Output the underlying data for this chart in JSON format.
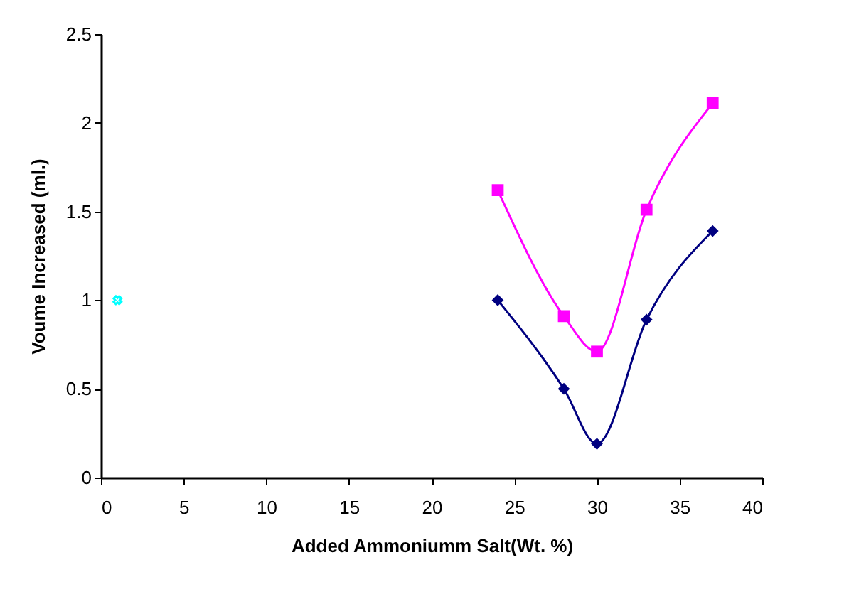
{
  "chart_data": {
    "type": "line",
    "xlabel": "Added Ammoniumm Salt(Wt. %)",
    "ylabel": "Voume Increased (ml.)",
    "xlim": [
      0,
      40
    ],
    "xticks": [
      0,
      5,
      10,
      15,
      20,
      25,
      30,
      35,
      40
    ],
    "ylim": [
      0,
      2.5
    ],
    "yticks": [
      0,
      0.5,
      1,
      1.5,
      2,
      2.5
    ],
    "grid": false,
    "series": [
      {
        "color": "#000080",
        "marker": "diamond",
        "x": [
          24,
          28,
          30,
          33,
          37
        ],
        "values": [
          1.0,
          0.5,
          0.19,
          0.89,
          1.39
        ]
      },
      {
        "color": "#ff00ff",
        "marker": "square",
        "x": [
          24,
          28,
          30,
          33,
          37
        ],
        "values": [
          1.62,
          0.91,
          0.71,
          1.51,
          2.11
        ]
      },
      {
        "type": "scatter",
        "color": "#00ffff",
        "marker": "cross",
        "x": [
          1
        ],
        "values": [
          1
        ]
      }
    ]
  }
}
